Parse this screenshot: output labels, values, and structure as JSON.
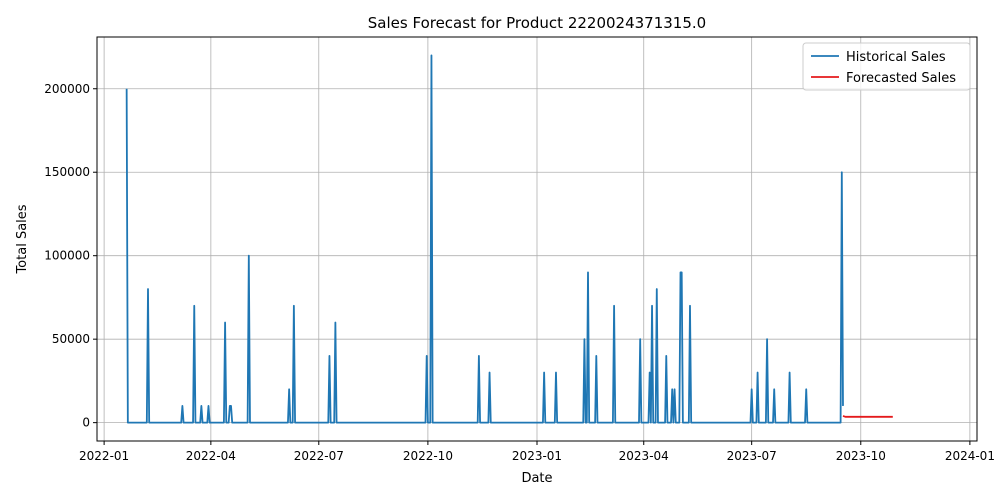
{
  "chart_data": {
    "type": "line",
    "title": "Sales Forecast for Product 2220024371315.0",
    "xlabel": "Date",
    "ylabel": "Total Sales",
    "xlim": [
      "2021-12-26",
      "2024-01-07"
    ],
    "ylim": [
      -11000,
      231000
    ],
    "grid": true,
    "legend_position": "top-right",
    "x_ticks": [
      {
        "date": "2022-01-01",
        "label": "2022-01"
      },
      {
        "date": "2022-04-01",
        "label": "2022-04"
      },
      {
        "date": "2022-07-01",
        "label": "2022-07"
      },
      {
        "date": "2022-10-01",
        "label": "2022-10"
      },
      {
        "date": "2023-01-01",
        "label": "2023-01"
      },
      {
        "date": "2023-04-01",
        "label": "2023-04"
      },
      {
        "date": "2023-07-01",
        "label": "2023-07"
      },
      {
        "date": "2023-10-01",
        "label": "2023-10"
      },
      {
        "date": "2024-01-01",
        "label": "2024-01"
      }
    ],
    "y_ticks": [
      {
        "value": 0,
        "label": "0"
      },
      {
        "value": 50000,
        "label": "50000"
      },
      {
        "value": 100000,
        "label": "100000"
      },
      {
        "value": 150000,
        "label": "150000"
      },
      {
        "value": 200000,
        "label": "200000"
      }
    ],
    "series": [
      {
        "name": "Historical Sales",
        "color": "#1f77b4",
        "points": [
          [
            "2022-01-20",
            200000
          ],
          [
            "2022-01-21",
            0
          ],
          [
            "2022-02-06",
            0
          ],
          [
            "2022-02-07",
            80000
          ],
          [
            "2022-02-08",
            0
          ],
          [
            "2022-03-07",
            0
          ],
          [
            "2022-03-08",
            10000
          ],
          [
            "2022-03-09",
            0
          ],
          [
            "2022-03-17",
            0
          ],
          [
            "2022-03-18",
            70000
          ],
          [
            "2022-03-19",
            0
          ],
          [
            "2022-03-23",
            0
          ],
          [
            "2022-03-24",
            10000
          ],
          [
            "2022-03-25",
            0
          ],
          [
            "2022-03-29",
            0
          ],
          [
            "2022-03-30",
            10000
          ],
          [
            "2022-03-31",
            0
          ],
          [
            "2022-04-12",
            0
          ],
          [
            "2022-04-13",
            60000
          ],
          [
            "2022-04-14",
            0
          ],
          [
            "2022-04-16",
            0
          ],
          [
            "2022-04-17",
            10000
          ],
          [
            "2022-04-18",
            10000
          ],
          [
            "2022-04-19",
            0
          ],
          [
            "2022-05-02",
            0
          ],
          [
            "2022-05-03",
            100000
          ],
          [
            "2022-05-04",
            0
          ],
          [
            "2022-06-05",
            0
          ],
          [
            "2022-06-06",
            20000
          ],
          [
            "2022-06-07",
            0
          ],
          [
            "2022-06-09",
            0
          ],
          [
            "2022-06-10",
            70000
          ],
          [
            "2022-06-11",
            0
          ],
          [
            "2022-07-09",
            0
          ],
          [
            "2022-07-10",
            40000
          ],
          [
            "2022-07-11",
            0
          ],
          [
            "2022-07-14",
            0
          ],
          [
            "2022-07-15",
            60000
          ],
          [
            "2022-07-16",
            0
          ],
          [
            "2022-09-29",
            0
          ],
          [
            "2022-09-30",
            40000
          ],
          [
            "2022-10-01",
            0
          ],
          [
            "2022-10-03",
            0
          ],
          [
            "2022-10-04",
            220000
          ],
          [
            "2022-10-05",
            0
          ],
          [
            "2022-11-12",
            0
          ],
          [
            "2022-11-13",
            40000
          ],
          [
            "2022-11-14",
            0
          ],
          [
            "2022-11-21",
            0
          ],
          [
            "2022-11-22",
            30000
          ],
          [
            "2022-11-23",
            0
          ],
          [
            "2023-01-06",
            0
          ],
          [
            "2023-01-07",
            30000
          ],
          [
            "2023-01-08",
            0
          ],
          [
            "2023-01-16",
            0
          ],
          [
            "2023-01-17",
            30000
          ],
          [
            "2023-01-18",
            0
          ],
          [
            "2023-02-09",
            0
          ],
          [
            "2023-02-10",
            50000
          ],
          [
            "2023-02-11",
            0
          ],
          [
            "2023-02-12",
            0
          ],
          [
            "2023-02-13",
            90000
          ],
          [
            "2023-02-14",
            0
          ],
          [
            "2023-02-19",
            0
          ],
          [
            "2023-02-20",
            40000
          ],
          [
            "2023-02-21",
            0
          ],
          [
            "2023-03-06",
            0
          ],
          [
            "2023-03-07",
            70000
          ],
          [
            "2023-03-08",
            0
          ],
          [
            "2023-03-28",
            0
          ],
          [
            "2023-03-29",
            50000
          ],
          [
            "2023-03-30",
            0
          ],
          [
            "2023-04-05",
            0
          ],
          [
            "2023-04-06",
            30000
          ],
          [
            "2023-04-07",
            0
          ],
          [
            "2023-04-07",
            0
          ],
          [
            "2023-04-08",
            70000
          ],
          [
            "2023-04-09",
            0
          ],
          [
            "2023-04-11",
            0
          ],
          [
            "2023-04-12",
            80000
          ],
          [
            "2023-04-13",
            0
          ],
          [
            "2023-04-19",
            0
          ],
          [
            "2023-04-20",
            40000
          ],
          [
            "2023-04-21",
            0
          ],
          [
            "2023-04-24",
            0
          ],
          [
            "2023-04-25",
            20000
          ],
          [
            "2023-04-26",
            0
          ],
          [
            "2023-04-26",
            0
          ],
          [
            "2023-04-27",
            20000
          ],
          [
            "2023-04-28",
            0
          ],
          [
            "2023-05-01",
            0
          ],
          [
            "2023-05-02",
            90000
          ],
          [
            "2023-05-03",
            90000
          ],
          [
            "2023-05-04",
            0
          ],
          [
            "2023-05-09",
            0
          ],
          [
            "2023-05-10",
            70000
          ],
          [
            "2023-05-11",
            0
          ],
          [
            "2023-06-30",
            0
          ],
          [
            "2023-07-01",
            20000
          ],
          [
            "2023-07-02",
            0
          ],
          [
            "2023-07-05",
            0
          ],
          [
            "2023-07-06",
            30000
          ],
          [
            "2023-07-07",
            0
          ],
          [
            "2023-07-13",
            0
          ],
          [
            "2023-07-14",
            50000
          ],
          [
            "2023-07-15",
            0
          ],
          [
            "2023-07-19",
            0
          ],
          [
            "2023-07-20",
            20000
          ],
          [
            "2023-07-21",
            0
          ],
          [
            "2023-08-01",
            0
          ],
          [
            "2023-08-02",
            30000
          ],
          [
            "2023-08-03",
            0
          ],
          [
            "2023-08-15",
            0
          ],
          [
            "2023-08-16",
            20000
          ],
          [
            "2023-08-17",
            0
          ],
          [
            "2023-09-14",
            0
          ],
          [
            "2023-09-15",
            150000
          ],
          [
            "2023-09-16",
            10000
          ]
        ]
      },
      {
        "name": "Forecasted Sales",
        "color": "#e41a1c",
        "points": [
          [
            "2023-09-16",
            4000
          ],
          [
            "2023-09-18",
            3500
          ],
          [
            "2023-10-01",
            3500
          ],
          [
            "2023-10-15",
            3500
          ],
          [
            "2023-10-28",
            3500
          ]
        ]
      }
    ]
  }
}
